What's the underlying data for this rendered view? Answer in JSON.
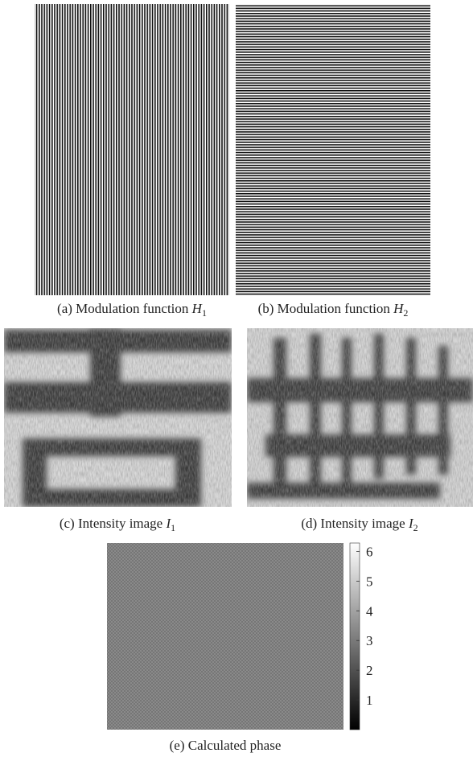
{
  "panels": [
    {
      "label": "(a) Modulation function ",
      "symbol": "H",
      "subscript": "1"
    },
    {
      "label": "(b) Modulation function ",
      "symbol": "H",
      "subscript": "2"
    },
    {
      "label": "(c) Intensity image ",
      "symbol": "I",
      "subscript": "1"
    },
    {
      "label": "(d) Intensity image ",
      "symbol": "I",
      "subscript": "2"
    },
    {
      "label": "(e) Calculated phase"
    }
  ],
  "colorbar": {
    "lim": [
      0,
      6.2832
    ],
    "ticks": [
      1,
      2,
      3,
      4,
      5,
      6
    ]
  }
}
